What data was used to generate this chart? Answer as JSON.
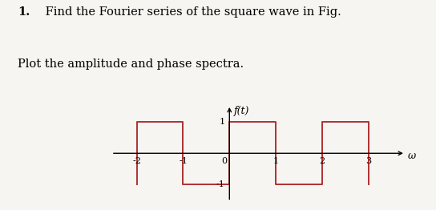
{
  "title_bold": "1.",
  "title_text": " Find the Fourier series of the square wave in Fig.",
  "subtitle_text": "Plot the amplitude and phase spectra.",
  "ylabel": "f(t)",
  "xlabel": "ω",
  "xlim": [
    -2.6,
    3.8
  ],
  "ylim": [
    -1.55,
    1.55
  ],
  "xticks": [
    -2,
    -1,
    0,
    1,
    2,
    3
  ],
  "ytick_pos": 1,
  "ytick_neg": -1,
  "wave_color": "#b03030",
  "bg_color": "#f7f5f2",
  "wave_x": [
    -2,
    -2,
    -1,
    -1,
    0,
    0,
    1,
    1,
    2,
    2,
    3,
    3
  ],
  "wave_y": [
    -1,
    1,
    1,
    -1,
    -1,
    1,
    1,
    -1,
    -1,
    1,
    1,
    -1
  ],
  "line_width": 1.4,
  "font_size_title": 10.5,
  "font_size_tick": 8,
  "font_size_axis_label": 9
}
